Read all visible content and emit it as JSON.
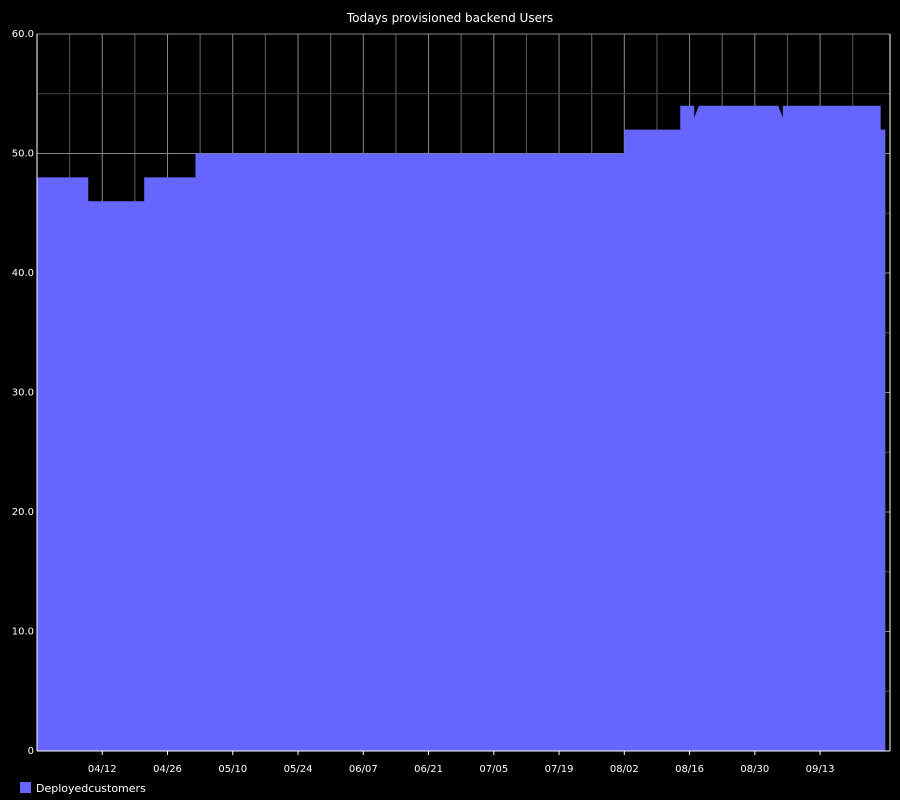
{
  "chart_data": {
    "type": "area",
    "title": "Todays provisioned backend  Users",
    "xlabel": "",
    "ylabel": "",
    "ylim": [
      0,
      60
    ],
    "grid": true,
    "legend_position": "bottom-left",
    "x_tick_labels": [
      "04/12",
      "04/26",
      "05/10",
      "05/24",
      "06/07",
      "06/21",
      "07/05",
      "07/19",
      "08/02",
      "08/16",
      "08/30",
      "09/13"
    ],
    "y_tick_labels": [
      "0",
      "10.0",
      "20.0",
      "30.0",
      "40.0",
      "50.0",
      "60.0"
    ],
    "x_range": [
      "03/29",
      "09/28"
    ],
    "series": [
      {
        "name": "Deployedcustomers",
        "color": "#6666ff",
        "x": [
          "03/29",
          "04/09",
          "04/09",
          "04/21",
          "04/21",
          "05/02",
          "05/02",
          "08/02",
          "08/02",
          "08/14",
          "08/14",
          "08/17",
          "08/17",
          "08/18",
          "09/04",
          "09/05",
          "09/05",
          "09/26",
          "09/26",
          "09/27"
        ],
        "values": [
          48,
          48,
          46,
          46,
          48,
          48,
          50,
          50,
          52,
          52,
          54,
          54,
          53,
          54,
          54,
          53,
          54,
          54,
          52,
          52
        ]
      }
    ]
  }
}
